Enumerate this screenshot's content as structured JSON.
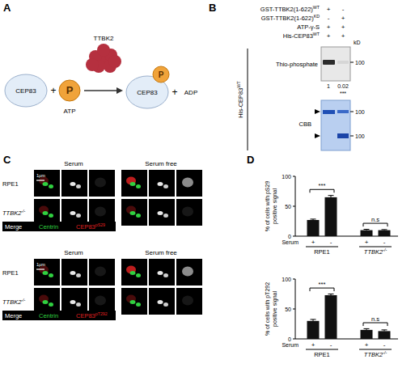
{
  "panel_a": {
    "letter": "A",
    "enzyme": "TTBK2",
    "substrate": "CEP83",
    "phosphate": "P",
    "donor": "ATP",
    "product": "ADP",
    "plus": "+"
  },
  "panel_b": {
    "letter": "B",
    "rows": [
      {
        "text": "GST-TTBK2(1-622)",
        "sup": "WT",
        "lanes": [
          "+",
          "-"
        ]
      },
      {
        "text": "GST-TTBK2(1-622)",
        "sup": "KD",
        "lanes": [
          "-",
          "+"
        ]
      },
      {
        "text": "ATP-γ-S",
        "lanes": [
          "+",
          "+"
        ]
      },
      {
        "text": "His-CEP83",
        "sup": "WT",
        "lanes": [
          "+",
          "+"
        ]
      }
    ],
    "unit": "kD",
    "blot_label": "Thio-phosphate",
    "blot_marker": 100,
    "quantification": [
      1,
      0.02
    ],
    "significance": "***",
    "side_label": {
      "text": "His-CEP83",
      "sup": "WT"
    },
    "gel_label": "CBB",
    "gel_markers": [
      100,
      100
    ]
  },
  "panel_c": {
    "letter": "C",
    "conditions": [
      "Serum",
      "Serum free"
    ],
    "cell_lines": [
      {
        "text": "RPE1"
      },
      {
        "text": "TTBK2",
        "sup": "-/-"
      }
    ],
    "scale_bar": "1μm",
    "blocks": [
      {
        "channels": [
          {
            "text": "Merge"
          },
          {
            "text": "Centrin"
          },
          {
            "text": "CEP83",
            "sup": "pS29"
          }
        ]
      },
      {
        "channels": [
          {
            "text": "Merge"
          },
          {
            "text": "Centrin"
          },
          {
            "text": "CEP83",
            "sup": "pT292"
          }
        ]
      }
    ]
  },
  "panel_d": {
    "letter": "D"
  },
  "chart_data": [
    {
      "type": "bar",
      "y_label": [
        "% of cells with pS29",
        "positive signal"
      ],
      "x_label": "Serum",
      "categories": [
        "+",
        "-",
        "+",
        "-"
      ],
      "groups": [
        {
          "text": "RPE1"
        },
        {
          "text": "TTBK2",
          "sup": "-/-"
        }
      ],
      "values": [
        27,
        65,
        10,
        10
      ],
      "errors": [
        1.5,
        3,
        1.5,
        1
      ],
      "significance": [
        "***",
        "n.s"
      ],
      "color": "#111111",
      "ylim": [
        0,
        100
      ],
      "yticks": [
        0,
        50,
        100
      ]
    },
    {
      "type": "bar",
      "y_label": [
        "% of cells with pT292",
        "positive signal"
      ],
      "x_label": "Serum",
      "categories": [
        "+",
        "-",
        "+",
        "-"
      ],
      "groups": [
        {
          "text": "RPE1"
        },
        {
          "text": "TTBK2",
          "sup": "-/-"
        }
      ],
      "values": [
        30,
        73,
        15,
        13
      ],
      "errors": [
        2.5,
        2,
        2,
        2
      ],
      "significance": [
        "***",
        "n.s"
      ],
      "color": "#111111",
      "ylim": [
        0,
        100
      ],
      "yticks": [
        0,
        50,
        100
      ]
    }
  ]
}
